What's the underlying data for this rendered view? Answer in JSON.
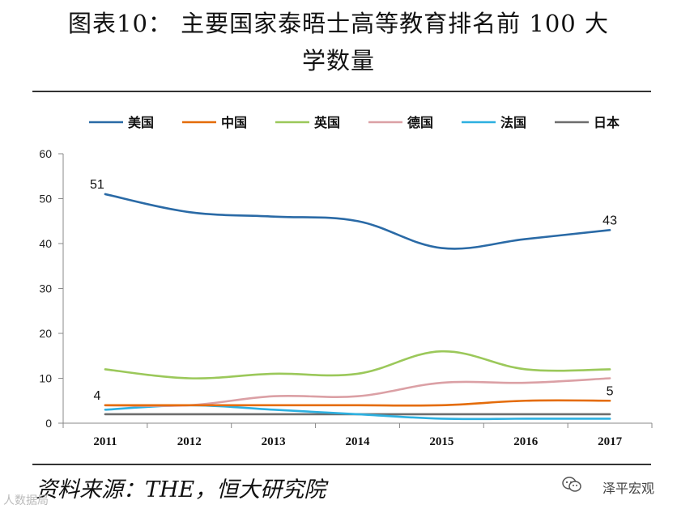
{
  "header": {
    "title_line1": "图表10： 主要国家泰晤士高等教育排名前 100 大",
    "title_line2": "学数量"
  },
  "footer": {
    "source": "资料来源：THE，恒大研究院",
    "watermark_right": "泽平宏观",
    "watermark_left": "人数据局"
  },
  "chart_data": {
    "type": "line",
    "title": "主要国家泰晤士高等教育排名前 100 大学数量",
    "xlabel": "",
    "ylabel": "",
    "categories": [
      "2011",
      "2012",
      "2013",
      "2014",
      "2015",
      "2016",
      "2017"
    ],
    "yticks": [
      0,
      10,
      20,
      30,
      40,
      50,
      60
    ],
    "ylim": [
      0,
      60
    ],
    "legend_position": "top",
    "series": [
      {
        "name": "美国",
        "color": "#2a6aa6",
        "values": [
          51,
          47,
          46,
          45,
          39,
          41,
          43
        ]
      },
      {
        "name": "中国",
        "color": "#e46c0a",
        "values": [
          4,
          4,
          4,
          4,
          4,
          5,
          5
        ]
      },
      {
        "name": "英国",
        "color": "#9bc85a",
        "values": [
          12,
          10,
          11,
          11,
          16,
          12,
          12
        ]
      },
      {
        "name": "德国",
        "color": "#dba0a5",
        "values": [
          4,
          4,
          6,
          6,
          9,
          9,
          10
        ]
      },
      {
        "name": "法国",
        "color": "#2db0e0",
        "values": [
          3,
          4,
          3,
          2,
          1,
          1,
          1
        ]
      },
      {
        "name": "日本",
        "color": "#6d6d6d",
        "values": [
          2,
          2,
          2,
          2,
          2,
          2,
          2
        ]
      }
    ],
    "annotations": [
      {
        "series": "美国",
        "index": 0,
        "text": "51"
      },
      {
        "series": "美国",
        "index": 6,
        "text": "43"
      },
      {
        "series": "中国",
        "index": 0,
        "text": "4"
      },
      {
        "series": "中国",
        "index": 6,
        "text": "5"
      }
    ]
  }
}
